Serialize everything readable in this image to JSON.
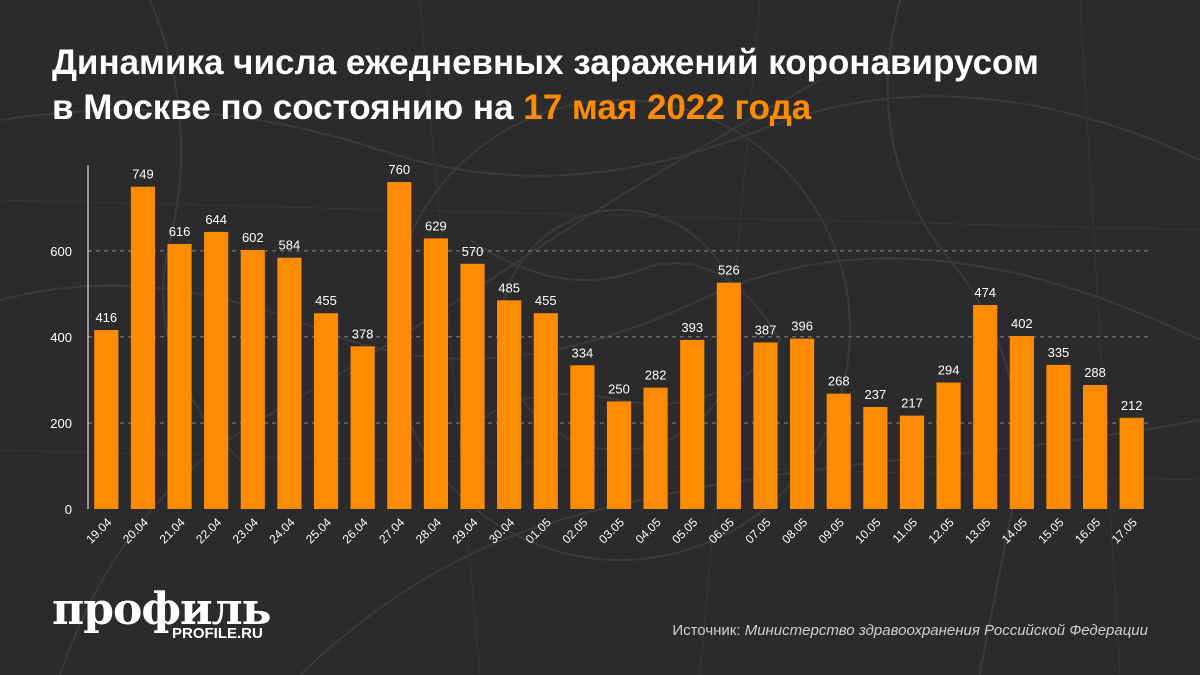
{
  "title": {
    "line1": "Динамика числа ежедневных заражений коронавирусом",
    "line2_prefix": "в Москве по состоянию на ",
    "line2_accent": "17 мая 2022 года"
  },
  "brand": {
    "logo": "профиль",
    "url": "PROFILE.RU"
  },
  "source": {
    "label": "Источник:",
    "text": "Министерство здравоохранения Российской Федерации"
  },
  "colors": {
    "bar": "#ff8c00",
    "accent": "#ff8c00",
    "background": "#2b2b2d"
  },
  "chart_data": {
    "type": "bar",
    "title": "",
    "xlabel": "",
    "ylabel": "",
    "ylim": [
      0,
      800
    ],
    "yticks": [
      0,
      200,
      400,
      600
    ],
    "grid": true,
    "categories": [
      "19.04",
      "20.04",
      "21.04",
      "22.04",
      "23.04",
      "24.04",
      "25.04",
      "26.04",
      "27.04",
      "28.04",
      "29.04",
      "30.04",
      "01.05",
      "02.05",
      "03.05",
      "04.05",
      "05.05",
      "06.05",
      "07.05",
      "08.05",
      "09.05",
      "10.05",
      "11.05",
      "12.05",
      "13.05",
      "14.05",
      "15.05",
      "16.05",
      "17.05"
    ],
    "values": [
      416,
      749,
      616,
      644,
      602,
      584,
      455,
      378,
      760,
      629,
      570,
      485,
      455,
      334,
      250,
      282,
      393,
      526,
      387,
      396,
      268,
      237,
      217,
      294,
      474,
      402,
      335,
      288,
      212
    ]
  }
}
